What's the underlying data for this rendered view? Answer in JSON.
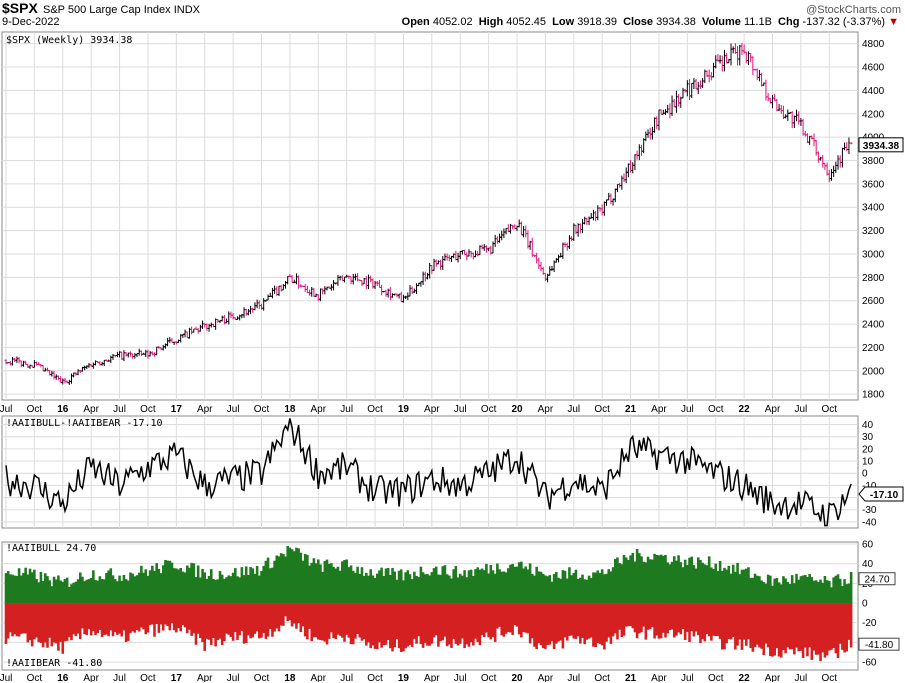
{
  "header": {
    "symbol": "$SPX",
    "name": "S&P 500 Large Cap Index",
    "exchange": "INDX",
    "watermark": "@StockCharts.com",
    "date": "9-Dec-2022",
    "open_label": "Open",
    "open": "4052.02",
    "high_label": "High",
    "high": "4052.45",
    "low_label": "Low",
    "low": "3918.39",
    "close_label": "Close",
    "close": "3934.38",
    "volume_label": "Volume",
    "volume": "11.1B",
    "chg_label": "Chg",
    "chg": "-137.32 (-3.37%)"
  },
  "colors": {
    "up": "#000000",
    "down": "#e0107a",
    "line": "#000000",
    "bull": "#1e7a1e",
    "bear": "#d42020",
    "grid": "#dcdcdc"
  },
  "chart_data": [
    {
      "type": "ohlc",
      "panel_label": "$SPX (Weekly) 3934.38",
      "last_value": "3934.38",
      "ylim": [
        1750,
        4900
      ],
      "yticks": [
        "1800",
        "2000",
        "2200",
        "2400",
        "2600",
        "2800",
        "3000",
        "3200",
        "3400",
        "3600",
        "3800",
        "4000",
        "4200",
        "4400",
        "4600",
        "4800"
      ],
      "x": [
        "2015-07",
        "2015-10",
        "2016-01",
        "2016-04",
        "2016-07",
        "2016-10",
        "2017-01",
        "2017-04",
        "2017-07",
        "2017-10",
        "2018-01",
        "2018-04",
        "2018-07",
        "2018-10",
        "2019-01",
        "2019-04",
        "2019-07",
        "2019-10",
        "2020-01",
        "2020-04",
        "2020-07",
        "2020-10",
        "2021-01",
        "2021-04",
        "2021-07",
        "2021-10",
        "2022-01",
        "2022-04",
        "2022-07",
        "2022-10",
        "2022-12"
      ],
      "values": [
        2090,
        2050,
        1900,
        2060,
        2130,
        2140,
        2270,
        2380,
        2470,
        2560,
        2800,
        2650,
        2810,
        2750,
        2600,
        2900,
        3000,
        3030,
        3280,
        2800,
        3200,
        3370,
        3760,
        4180,
        4400,
        4600,
        4760,
        4300,
        4100,
        3700,
        3934
      ]
    },
    {
      "type": "line",
      "panel_label": "!AAIIBULL-!AAIIBEAR -17.10",
      "last_value": "-17.10",
      "ylim": [
        -45,
        47
      ],
      "yticks": [
        "40",
        "30",
        "20",
        "10",
        "0",
        "-10",
        "-20",
        "-30",
        "-40"
      ],
      "x": [
        "2015-07",
        "2015-10",
        "2016-01",
        "2016-04",
        "2016-07",
        "2016-10",
        "2017-01",
        "2017-04",
        "2017-07",
        "2017-10",
        "2018-01",
        "2018-04",
        "2018-07",
        "2018-10",
        "2019-01",
        "2019-04",
        "2019-07",
        "2019-10",
        "2020-01",
        "2020-04",
        "2020-07",
        "2020-10",
        "2021-01",
        "2021-04",
        "2021-07",
        "2021-10",
        "2022-01",
        "2022-04",
        "2022-07",
        "2022-10",
        "2022-12"
      ],
      "values": [
        -5,
        -10,
        -25,
        5,
        -10,
        5,
        15,
        -10,
        -5,
        0,
        40,
        0,
        5,
        -15,
        -15,
        -5,
        -10,
        0,
        15,
        -20,
        -5,
        -15,
        20,
        15,
        10,
        0,
        -10,
        -25,
        -25,
        -35,
        -17
      ]
    },
    {
      "type": "bar",
      "panel_label_bull": "!AAIIBULL 24.70",
      "panel_label_bear": "!AAIIBEAR -41.80",
      "last_bull": "24.70",
      "last_bear": "-41.80",
      "ylim": [
        -68,
        62
      ],
      "yticks": [
        "60",
        "40",
        "20",
        "0",
        "-20",
        "-40",
        "-60"
      ],
      "x": [
        "2015-07",
        "2015-10",
        "2016-01",
        "2016-04",
        "2016-07",
        "2016-10",
        "2017-01",
        "2017-04",
        "2017-07",
        "2017-10",
        "2018-01",
        "2018-04",
        "2018-07",
        "2018-10",
        "2019-01",
        "2019-04",
        "2019-07",
        "2019-10",
        "2020-01",
        "2020-04",
        "2020-07",
        "2020-10",
        "2021-01",
        "2021-04",
        "2021-07",
        "2021-10",
        "2022-01",
        "2022-04",
        "2022-07",
        "2022-10",
        "2022-12"
      ],
      "series": [
        {
          "name": "!AAIIBULL",
          "values": [
            32,
            28,
            20,
            30,
            28,
            33,
            40,
            30,
            30,
            35,
            55,
            38,
            38,
            30,
            28,
            35,
            30,
            35,
            40,
            28,
            30,
            30,
            48,
            48,
            42,
            40,
            32,
            22,
            25,
            20,
            25
          ]
        },
        {
          "name": "!AAIIBEAR",
          "values": [
            -35,
            -38,
            -45,
            -27,
            -36,
            -28,
            -25,
            -42,
            -35,
            -33,
            -18,
            -38,
            -33,
            -45,
            -43,
            -38,
            -40,
            -35,
            -25,
            -48,
            -35,
            -42,
            -28,
            -32,
            -32,
            -40,
            -42,
            -48,
            -50,
            -55,
            -42
          ]
        }
      ]
    }
  ],
  "xaxis": {
    "labels": [
      "Jul",
      "Oct",
      "16",
      "Apr",
      "Jul",
      "Oct",
      "17",
      "Apr",
      "Jul",
      "Oct",
      "18",
      "Apr",
      "Jul",
      "Oct",
      "19",
      "Apr",
      "Jul",
      "Oct",
      "20",
      "Apr",
      "Jul",
      "Oct",
      "21",
      "Apr",
      "Jul",
      "Oct",
      "22",
      "Apr",
      "Jul",
      "Oct"
    ],
    "bold": [
      "16",
      "17",
      "18",
      "19",
      "20",
      "21",
      "22"
    ]
  }
}
